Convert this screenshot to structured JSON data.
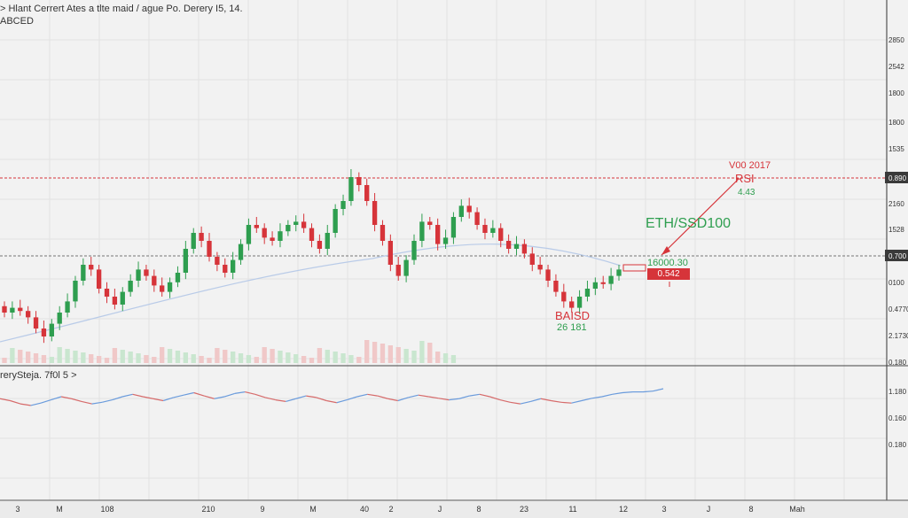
{
  "header": {
    "title": "> Hlant Cerrert Ates a tlte maid / ague Po. Derery I5, 14.",
    "subtitle": "ABCED"
  },
  "colors": {
    "up": "#2e9e4f",
    "down": "#d6343a",
    "ma": "#b9cbe8",
    "osc_up": "#6a9bdc",
    "osc_down": "#d66a6a",
    "grid": "#e2e2e2",
    "bg": "#f2f2f2"
  },
  "annotations": {
    "pair": "ETH/SSD100",
    "rsi": "RSI",
    "year": "V00 2017",
    "rsi_val": "4.43",
    "price_box": "16000.30",
    "red_box": "0.542",
    "low_label": "BAISD",
    "low_val": "26 181"
  },
  "chart_data": {
    "type": "candlestick",
    "title": "> Hlant Cerrert Ates a tlte maid / ague Po. Derery I5, 14.",
    "subtitle": "ABCED",
    "price_axis_labels": [
      "2850",
      "2542",
      "1800",
      "1800",
      "1535",
      "0.890",
      "2160",
      "1528",
      "0.700",
      "0100",
      "0.4770",
      "2.1730",
      "0.180"
    ],
    "osc_axis_labels": [
      "1.180",
      "0.160",
      "0.180"
    ],
    "time_axis_labels": [
      "3",
      "M",
      "108",
      "210",
      "9",
      "M",
      "40",
      "2",
      "J",
      "8",
      "23",
      "11",
      "12",
      "3",
      "J",
      "8",
      "Mah"
    ],
    "horizontal_levels": [
      {
        "label": "0.890",
        "color": "red"
      },
      {
        "label": "0.700",
        "color": "gray"
      }
    ],
    "oscillator_label": "rerySteja. 7f0l 5 >",
    "close_path": [
      0.15,
      0.18,
      0.16,
      0.12,
      0.05,
      0.0,
      0.08,
      0.15,
      0.22,
      0.35,
      0.45,
      0.42,
      0.3,
      0.25,
      0.2,
      0.28,
      0.35,
      0.42,
      0.38,
      0.32,
      0.28,
      0.34,
      0.4,
      0.55,
      0.65,
      0.6,
      0.5,
      0.45,
      0.4,
      0.48,
      0.58,
      0.7,
      0.68,
      0.62,
      0.6,
      0.66,
      0.7,
      0.72,
      0.68,
      0.6,
      0.55,
      0.65,
      0.8,
      0.85,
      1.0,
      0.95,
      0.85,
      0.7,
      0.6,
      0.45,
      0.38,
      0.48,
      0.6,
      0.72,
      0.7,
      0.58,
      0.62,
      0.75,
      0.82,
      0.78,
      0.7,
      0.65,
      0.68,
      0.6,
      0.55,
      0.58,
      0.52,
      0.45,
      0.42,
      0.35,
      0.28,
      0.22,
      0.18,
      0.25,
      0.3,
      0.34,
      0.33,
      0.38,
      0.42
    ],
    "oscillator": [
      0.55,
      0.5,
      0.42,
      0.38,
      0.44,
      0.52,
      0.6,
      0.55,
      0.48,
      0.42,
      0.46,
      0.52,
      0.6,
      0.66,
      0.6,
      0.55,
      0.5,
      0.58,
      0.64,
      0.7,
      0.62,
      0.55,
      0.6,
      0.68,
      0.72,
      0.66,
      0.58,
      0.52,
      0.48,
      0.55,
      0.62,
      0.58,
      0.5,
      0.45,
      0.52,
      0.6,
      0.66,
      0.62,
      0.55,
      0.5,
      0.58,
      0.64,
      0.6,
      0.56,
      0.52,
      0.55,
      0.62,
      0.66,
      0.6,
      0.52,
      0.46,
      0.42,
      0.48,
      0.55,
      0.5,
      0.46,
      0.44,
      0.5,
      0.56,
      0.6,
      0.66,
      0.7,
      0.72,
      0.72,
      0.74,
      0.8
    ]
  }
}
